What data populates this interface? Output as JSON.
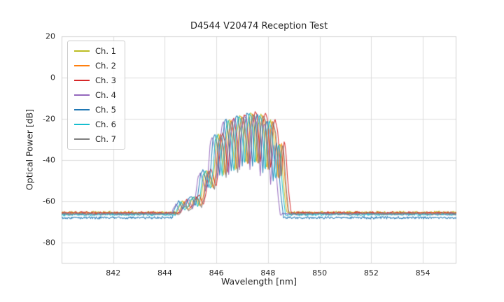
{
  "chart_data": {
    "type": "line",
    "title": "D4544 V20474 Reception Test",
    "xlabel": "Wavelength [nm]",
    "ylabel": "Optical Power [dB]",
    "xlim": [
      840.0,
      855.3
    ],
    "ylim": [
      -90,
      20
    ],
    "x_ticks": [
      842,
      844,
      846,
      848,
      850,
      852,
      854
    ],
    "y_ticks": [
      20,
      0,
      -20,
      -40,
      -60,
      -80
    ],
    "grid": true,
    "legend_position": "upper-left",
    "grid_color": "#dcdcdc",
    "frame_color": "#d0d0d0",
    "floor_threshold": -65.2,
    "noise_floor_db": 0.7,
    "noise_signal_db": 0.35,
    "sample_step_nm": 0.025,
    "base_spectrum": [
      [
        839.4,
        -65.5
      ],
      [
        844.45,
        -65.5
      ],
      [
        844.55,
        -62.5
      ],
      [
        844.68,
        -59.5
      ],
      [
        844.82,
        -63.5
      ],
      [
        844.95,
        -62.0
      ],
      [
        845.05,
        -58.5
      ],
      [
        845.18,
        -57.5
      ],
      [
        845.32,
        -62.0
      ],
      [
        845.42,
        -57.0
      ],
      [
        845.52,
        -47.0
      ],
      [
        845.62,
        -44.5
      ],
      [
        845.72,
        -49.0
      ],
      [
        845.82,
        -53.5
      ],
      [
        845.92,
        -44.0
      ],
      [
        846.0,
        -30.0
      ],
      [
        846.08,
        -27.0
      ],
      [
        846.18,
        -33.0
      ],
      [
        846.27,
        -48.0
      ],
      [
        846.36,
        -32.0
      ],
      [
        846.46,
        -21.0
      ],
      [
        846.52,
        -20.0
      ],
      [
        846.62,
        -30.0
      ],
      [
        846.72,
        -46.0
      ],
      [
        846.8,
        -26.0
      ],
      [
        846.9,
        -18.5
      ],
      [
        846.98,
        -19.0
      ],
      [
        847.08,
        -32.0
      ],
      [
        847.14,
        -43.0
      ],
      [
        847.22,
        -24.0
      ],
      [
        847.32,
        -17.0
      ],
      [
        847.4,
        -18.0
      ],
      [
        847.48,
        -31.0
      ],
      [
        847.54,
        -43.0
      ],
      [
        847.62,
        -23.0
      ],
      [
        847.72,
        -17.5
      ],
      [
        847.8,
        -20.0
      ],
      [
        847.88,
        -34.0
      ],
      [
        847.94,
        -46.0
      ],
      [
        848.02,
        -25.0
      ],
      [
        848.1,
        -20.5
      ],
      [
        848.2,
        -26.0
      ],
      [
        848.28,
        -38.0
      ],
      [
        848.34,
        -50.0
      ],
      [
        848.4,
        -38.0
      ],
      [
        848.46,
        -31.0
      ],
      [
        848.52,
        -36.0
      ],
      [
        848.58,
        -48.0
      ],
      [
        848.64,
        -57.0
      ],
      [
        848.72,
        -65.5
      ],
      [
        855.8,
        -65.5
      ]
    ],
    "series": [
      {
        "name": "Ch. 1",
        "color": "#bcbd22",
        "dx": 0.0,
        "dy": 0.0,
        "floor": -65.2,
        "seed": 11
      },
      {
        "name": "Ch. 2",
        "color": "#ff7f0e",
        "dx": 0.07,
        "dy": -0.5,
        "floor": -65.6,
        "seed": 22
      },
      {
        "name": "Ch. 3",
        "color": "#d62728",
        "dx": 0.17,
        "dy": 0.5,
        "floor": -65.4,
        "seed": 33
      },
      {
        "name": "Ch. 4",
        "color": "#9467bd",
        "dx": -0.24,
        "dy": -1.5,
        "floor": -66.0,
        "seed": 44
      },
      {
        "name": "Ch. 5",
        "color": "#1f77b4",
        "dx": -0.14,
        "dy": 0.0,
        "floor": -67.8,
        "seed": 55
      },
      {
        "name": "Ch. 6",
        "color": "#17becf",
        "dx": -0.05,
        "dy": -0.5,
        "floor": -66.3,
        "seed": 66
      },
      {
        "name": "Ch. 7",
        "color": "#7f7f7f",
        "dx": 0.1,
        "dy": -1.0,
        "floor": -65.9,
        "seed": 77
      }
    ]
  }
}
